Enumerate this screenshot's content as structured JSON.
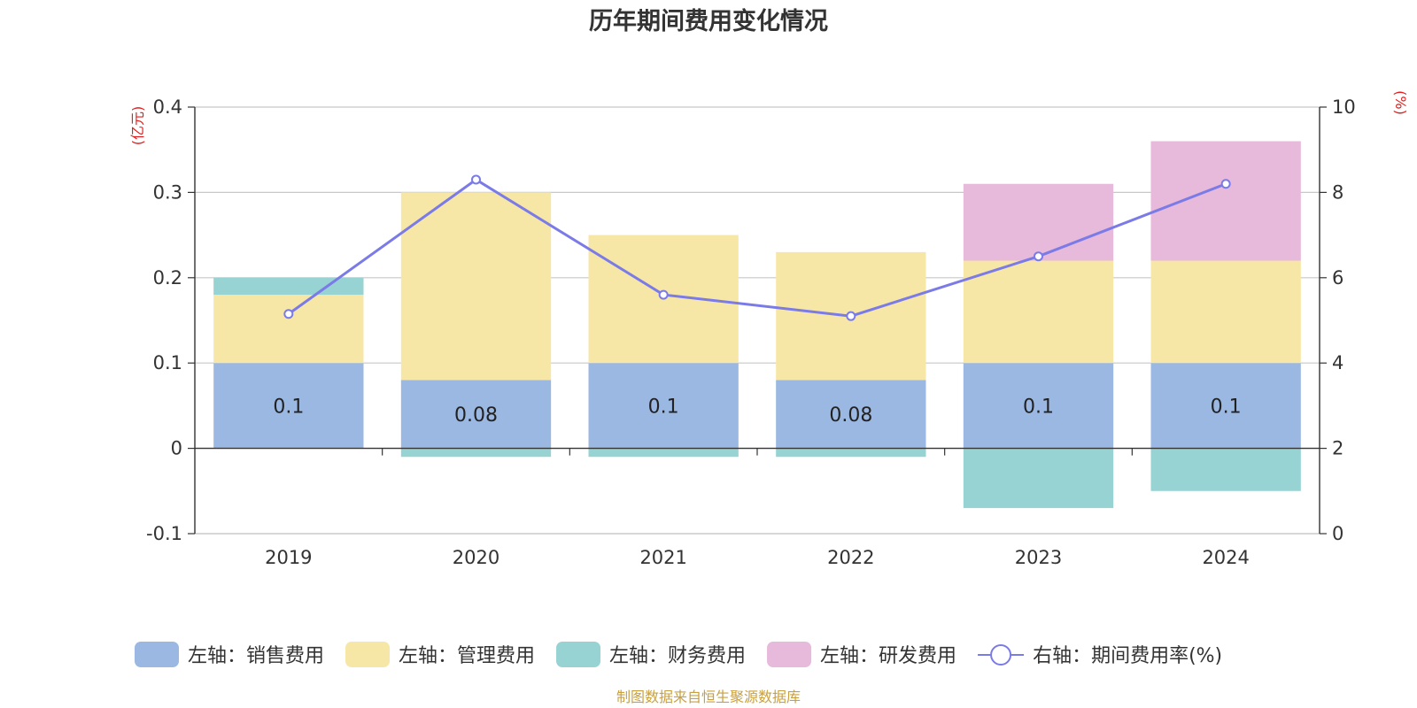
{
  "chart_data": {
    "type": "bar",
    "stacked": true,
    "title": "历年期间费用变化情况",
    "categories": [
      "2019",
      "2020",
      "2021",
      "2022",
      "2023",
      "2024"
    ],
    "y_left": {
      "unit": "(亿元)",
      "min": -0.1,
      "max": 0.4,
      "ticks": [
        -0.1,
        0,
        0.1,
        0.2,
        0.3,
        0.4
      ]
    },
    "y_right": {
      "unit": "(%)",
      "min": 0,
      "max": 10,
      "ticks": [
        0,
        2,
        4,
        6,
        8,
        10
      ]
    },
    "series": [
      {
        "name": "左轴：销售费用",
        "type": "bar",
        "axis": "left",
        "color": "#9bb8e2",
        "values": [
          0.1,
          0.08,
          0.1,
          0.08,
          0.1,
          0.1
        ],
        "data_labels": [
          "0.1",
          "0.08",
          "0.1",
          "0.08",
          "0.1",
          "0.1"
        ]
      },
      {
        "name": "左轴：管理费用",
        "type": "bar",
        "axis": "left",
        "color": "#f7e7a7",
        "values": [
          0.08,
          0.22,
          0.15,
          0.15,
          0.12,
          0.12
        ]
      },
      {
        "name": "左轴：财务费用",
        "type": "bar",
        "axis": "left",
        "color": "#98d3d3",
        "values": [
          0.02,
          -0.01,
          -0.01,
          -0.01,
          -0.07,
          -0.05
        ]
      },
      {
        "name": "左轴：研发费用",
        "type": "bar",
        "axis": "left",
        "color": "#e7b9da",
        "values": [
          0,
          0,
          0,
          0,
          0.09,
          0.14
        ]
      },
      {
        "name": "右轴：期间费用率(%)",
        "type": "line",
        "axis": "right",
        "color": "#7b7be8",
        "values": [
          5.15,
          8.3,
          5.6,
          5.1,
          6.5,
          8.2
        ]
      }
    ],
    "grid": true,
    "legend_position": "bottom",
    "source": "制图数据来自恒生聚源数据库"
  }
}
